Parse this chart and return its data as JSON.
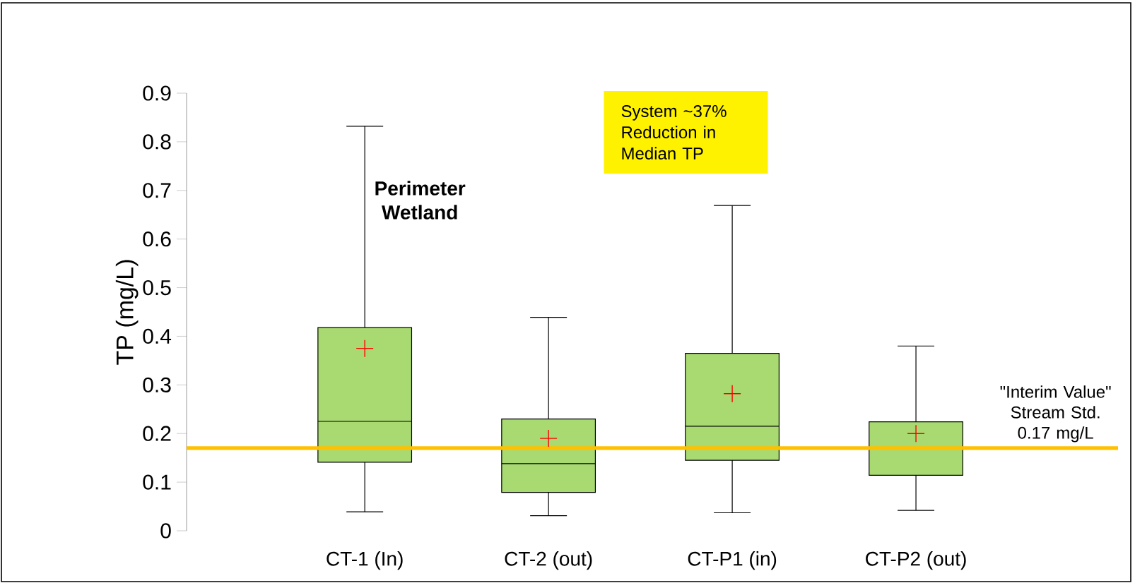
{
  "chart_data": {
    "type": "box",
    "ylabel": "TP (mg/L)",
    "categories": [
      "CT-1 (In)",
      "CT-2 (out)",
      "CT-P1 (in)",
      "CT-P2 (out)"
    ],
    "boxes": [
      {
        "low": 0.039,
        "q1": 0.141,
        "median": 0.225,
        "q3": 0.418,
        "high": 0.832,
        "mean": 0.375
      },
      {
        "low": 0.031,
        "q1": 0.079,
        "median": 0.138,
        "q3": 0.23,
        "high": 0.439,
        "mean": 0.19
      },
      {
        "low": 0.037,
        "q1": 0.145,
        "median": 0.215,
        "q3": 0.365,
        "high": 0.669,
        "mean": 0.282
      },
      {
        "low": 0.042,
        "q1": 0.114,
        "median": 0.17,
        "q3": 0.224,
        "high": 0.38,
        "mean": 0.2
      }
    ],
    "color": "#a9da71",
    "ylim": [
      0,
      0.9
    ],
    "yticks": [
      0,
      0.1,
      0.2,
      0.3,
      0.4,
      0.5,
      0.6,
      0.7,
      0.8,
      0.9
    ],
    "ref_lines": [
      {
        "axis": "y",
        "value": 0.17,
        "label": "\"Interim Value\" Stream Std. 0.17 mg/L",
        "color": "#ffc000"
      }
    ],
    "annotations": [
      "System ~37% Reduction in Median TP",
      "Perimeter Wetland"
    ]
  }
}
